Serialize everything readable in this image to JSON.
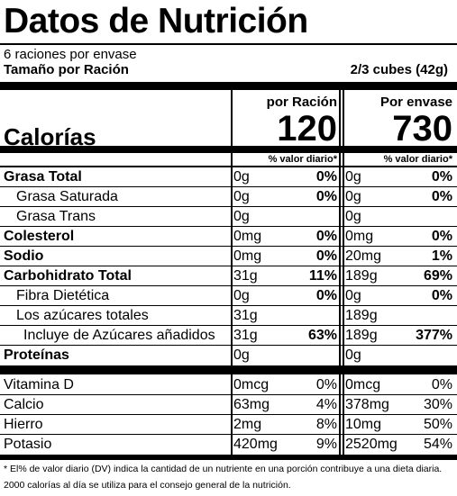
{
  "title": "Datos de Nutrición",
  "servings": "6 raciones por envase",
  "serving_size": {
    "label": "Tamaño por Ración",
    "value": "2/3 cubes (42g)"
  },
  "calories_label": "Calorías",
  "columns": [
    {
      "header": "por Ración",
      "calories": "120",
      "dv_header": "% valor diario*"
    },
    {
      "header": "Por envase",
      "calories": "730",
      "dv_header": "% valor diario*"
    }
  ],
  "nutrients": [
    {
      "name": "Grasa Total",
      "bold": true,
      "indent": 0,
      "values": [
        {
          "amount": "0g",
          "dv": "0%"
        },
        {
          "amount": "0g",
          "dv": "0%"
        }
      ]
    },
    {
      "name": "Grasa Saturada",
      "bold": false,
      "indent": 1,
      "values": [
        {
          "amount": "0g",
          "dv": "0%"
        },
        {
          "amount": "0g",
          "dv": "0%"
        }
      ]
    },
    {
      "name": "Grasa Trans",
      "bold": false,
      "indent": 1,
      "values": [
        {
          "amount": "0g"
        },
        {
          "amount": "0g"
        }
      ]
    },
    {
      "name": "Colesterol",
      "bold": true,
      "indent": 0,
      "values": [
        {
          "amount": "0mg",
          "dv": "0%"
        },
        {
          "amount": "0mg",
          "dv": "0%"
        }
      ]
    },
    {
      "name": "Sodio",
      "bold": true,
      "indent": 0,
      "values": [
        {
          "amount": "0mg",
          "dv": "0%"
        },
        {
          "amount": "20mg",
          "dv": "1%"
        }
      ]
    },
    {
      "name": "Carbohidrato Total",
      "bold": true,
      "indent": 0,
      "values": [
        {
          "amount": "31g",
          "dv": "11%"
        },
        {
          "amount": "189g",
          "dv": "69%"
        }
      ]
    },
    {
      "name": "Fibra Dietética",
      "bold": false,
      "indent": 1,
      "values": [
        {
          "amount": "0g",
          "dv": "0%"
        },
        {
          "amount": "0g",
          "dv": "0%"
        }
      ]
    },
    {
      "name": "Los azúcares totales",
      "bold": false,
      "indent": 1,
      "values": [
        {
          "amount": "31g"
        },
        {
          "amount": "189g"
        }
      ]
    },
    {
      "name": "Incluye de Azúcares añadidos",
      "bold": false,
      "indent": 2,
      "values": [
        {
          "amount": "31g",
          "dv": "63%"
        },
        {
          "amount": "189g",
          "dv": "377%"
        }
      ]
    },
    {
      "name": "Proteínas",
      "bold": true,
      "indent": 0,
      "values": [
        {
          "amount": "0g"
        },
        {
          "amount": "0g"
        }
      ]
    }
  ],
  "vitamins": [
    {
      "name": "Vitamina D",
      "values": [
        {
          "amount": "0mcg",
          "dv": "0%"
        },
        {
          "amount": "0mcg",
          "dv": "0%"
        }
      ]
    },
    {
      "name": "Calcio",
      "values": [
        {
          "amount": "63mg",
          "dv": "4%"
        },
        {
          "amount": "378mg",
          "dv": "30%"
        }
      ]
    },
    {
      "name": "Hierro",
      "values": [
        {
          "amount": "2mg",
          "dv": "8%"
        },
        {
          "amount": "10mg",
          "dv": "50%"
        }
      ]
    },
    {
      "name": "Potasio",
      "values": [
        {
          "amount": "420mg",
          "dv": "9%"
        },
        {
          "amount": "2520mg",
          "dv": "54%"
        }
      ]
    }
  ],
  "footnote": [
    "* El% de valor diario (DV) indica la cantidad de un nutriente en una porción contribuye a una dieta diaria.",
    "2000 calorías al día se utiliza para el consejo general de la nutrición."
  ]
}
